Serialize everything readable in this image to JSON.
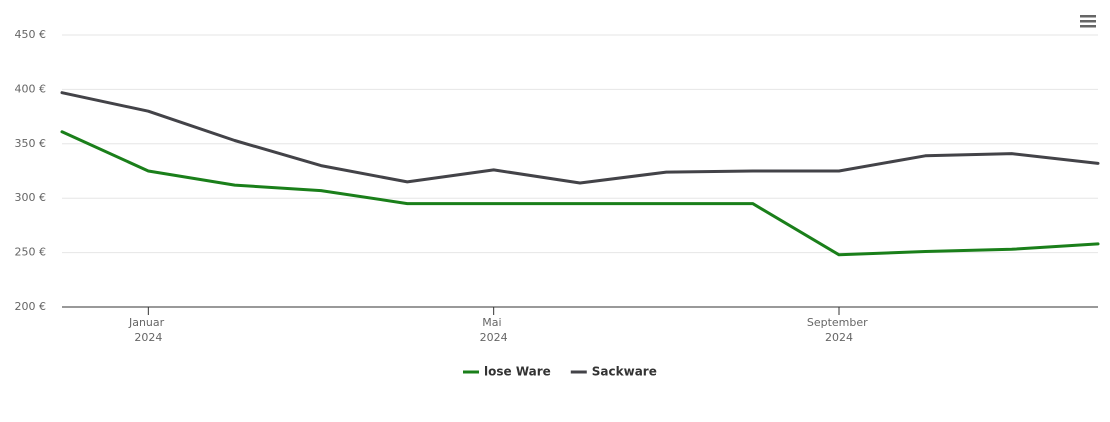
{
  "chart_data": {
    "type": "line",
    "x": [
      "2023-12",
      "2024-01",
      "2024-02",
      "2024-03",
      "2024-04",
      "2024-05",
      "2024-06",
      "2024-07",
      "2024-08",
      "2024-09",
      "2024-10",
      "2024-11",
      "2024-12"
    ],
    "series": [
      {
        "name": "lose Ware",
        "color": "#1a7f1a",
        "values": [
          361,
          325,
          312,
          307,
          295,
          295,
          295,
          295,
          295,
          248,
          251,
          253,
          258
        ]
      },
      {
        "name": "Sackware",
        "color": "#434348",
        "values": [
          397,
          380,
          353,
          330,
          315,
          326,
          314,
          324,
          325,
          325,
          339,
          341,
          332
        ]
      }
    ],
    "xlim": [
      "2023-12",
      "2024-12"
    ],
    "xticks": [
      {
        "value": "2024-01",
        "label": "Januar 2024"
      },
      {
        "value": "2024-05",
        "label": "Mai 2024"
      },
      {
        "value": "2024-09",
        "label": "September 2024"
      }
    ],
    "ylim": [
      200,
      450
    ],
    "yticks": [
      {
        "value": 200,
        "label": "200 €"
      },
      {
        "value": 250,
        "label": "250 €"
      },
      {
        "value": 300,
        "label": "300 €"
      },
      {
        "value": 350,
        "label": "350 €"
      },
      {
        "value": 400,
        "label": "400 €"
      },
      {
        "value": 450,
        "label": "450 €"
      }
    ],
    "grid": true,
    "legend": "bottom"
  }
}
